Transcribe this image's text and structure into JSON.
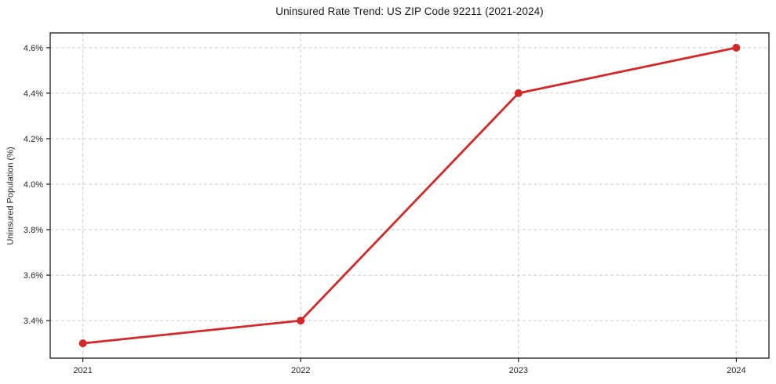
{
  "chart_data": {
    "type": "line",
    "title": "Uninsured Rate Trend: US ZIP Code 92211 (2021-2024)",
    "ylabel": "Uninsured Population (%)",
    "xlabel": "",
    "x": [
      2021,
      2022,
      2023,
      2024
    ],
    "series": [
      {
        "name": "Uninsured rate",
        "values": [
          3.3,
          3.4,
          4.4,
          4.6
        ]
      }
    ],
    "xticks": [
      2021,
      2022,
      2023,
      2024
    ],
    "xtick_labels": [
      "2021",
      "2022",
      "2023",
      "2024"
    ],
    "yticks": [
      3.4,
      3.6,
      3.8,
      4.0,
      4.2,
      4.4,
      4.6
    ],
    "ytick_labels": [
      "3.4%",
      "3.6%",
      "3.8%",
      "4.0%",
      "4.2%",
      "4.4%",
      "4.6%"
    ],
    "xlim": [
      2020.85,
      2024.15
    ],
    "ylim": [
      3.235,
      4.665
    ],
    "grid": true,
    "grid_style": "dashed",
    "legend_position": "none",
    "colors": {
      "line": "#d62728",
      "marker": "#d62728",
      "grid": "#cccccc",
      "spine": "#1a1a1a",
      "text": "#262626",
      "background": "#ffffff"
    }
  }
}
